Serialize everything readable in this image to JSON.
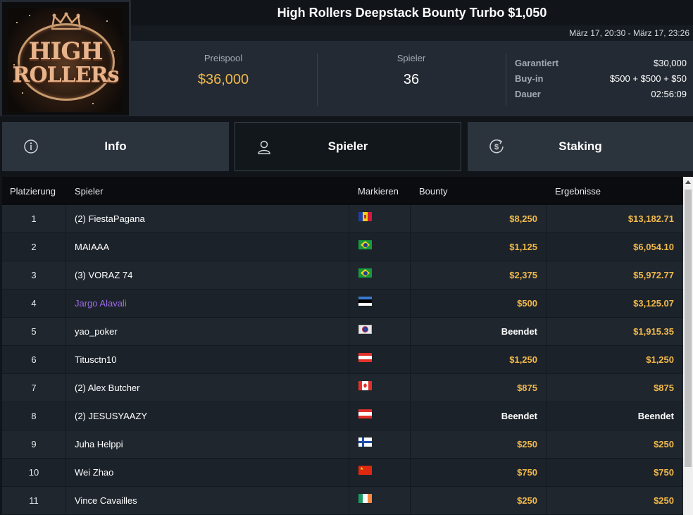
{
  "logo": {
    "line1": "HIGH",
    "line2": "ROLLERs"
  },
  "tournament": {
    "title": "High Rollers Deepstack Bounty Turbo $1,050",
    "dates": "März 17, 20:30 - März 17, 23:26"
  },
  "stats": {
    "prize_pool_label": "Preispool",
    "prize_pool_value": "$36,000",
    "players_label": "Spieler",
    "players_value": "36"
  },
  "details": [
    {
      "label": "Garantiert",
      "value": "$30,000"
    },
    {
      "label": "Buy-in",
      "value": "$500 + $500 + $50"
    },
    {
      "label": "Dauer",
      "value": "02:56:09"
    }
  ],
  "tabs": [
    {
      "label": "Info",
      "icon": "info-icon",
      "active": false
    },
    {
      "label": "Spieler",
      "icon": "user-icon",
      "active": true
    },
    {
      "label": "Staking",
      "icon": "dollar-coin-icon",
      "active": false
    }
  ],
  "table": {
    "headers": [
      "Platzierung",
      "Spieler",
      "Markieren",
      "Bounty",
      "Ergebnisse"
    ],
    "rows": [
      {
        "rank": "1",
        "player": "(2) FiestaPagana",
        "flag": "andorra-flag",
        "bounty": "$8,250",
        "result": "$13,182.71",
        "highlight": false
      },
      {
        "rank": "2",
        "player": "MAIAAA",
        "flag": "brazil-flag",
        "bounty": "$1,125",
        "result": "$6,054.10",
        "highlight": false
      },
      {
        "rank": "3",
        "player": "(3) VORAZ 74",
        "flag": "brazil-flag",
        "bounty": "$2,375",
        "result": "$5,972.77",
        "highlight": false
      },
      {
        "rank": "4",
        "player": "Jargo Alavali",
        "flag": "estonia-flag",
        "bounty": "$500",
        "result": "$3,125.07",
        "highlight": true
      },
      {
        "rank": "5",
        "player": "yao_poker",
        "flag": "taiwan-flag",
        "bounty": "Beendet",
        "result": "$1,915.35",
        "highlight": false
      },
      {
        "rank": "6",
        "player": "Titusctn10",
        "flag": "austria-flag",
        "bounty": "$1,250",
        "result": "$1,250",
        "highlight": false
      },
      {
        "rank": "7",
        "player": "(2) Alex Butcher",
        "flag": "canada-flag",
        "bounty": "$875",
        "result": "$875",
        "highlight": false
      },
      {
        "rank": "8",
        "player": "(2) JESUSYAAZY",
        "flag": "austria-flag",
        "bounty": "Beendet",
        "result": "Beendet",
        "highlight": false
      },
      {
        "rank": "9",
        "player": "Juha Helppi",
        "flag": "finland-flag",
        "bounty": "$250",
        "result": "$250",
        "highlight": false
      },
      {
        "rank": "10",
        "player": "Wei Zhao",
        "flag": "china-flag",
        "bounty": "$750",
        "result": "$750",
        "highlight": false
      },
      {
        "rank": "11",
        "player": "Vince Cavailles",
        "flag": "ireland-flag",
        "bounty": "$250",
        "result": "$250",
        "highlight": false
      }
    ]
  },
  "colors": {
    "gold": "#f1b94a",
    "highlight_player": "#9b6bea",
    "header_bg": "#232a33",
    "table_row": "#1f262e"
  }
}
